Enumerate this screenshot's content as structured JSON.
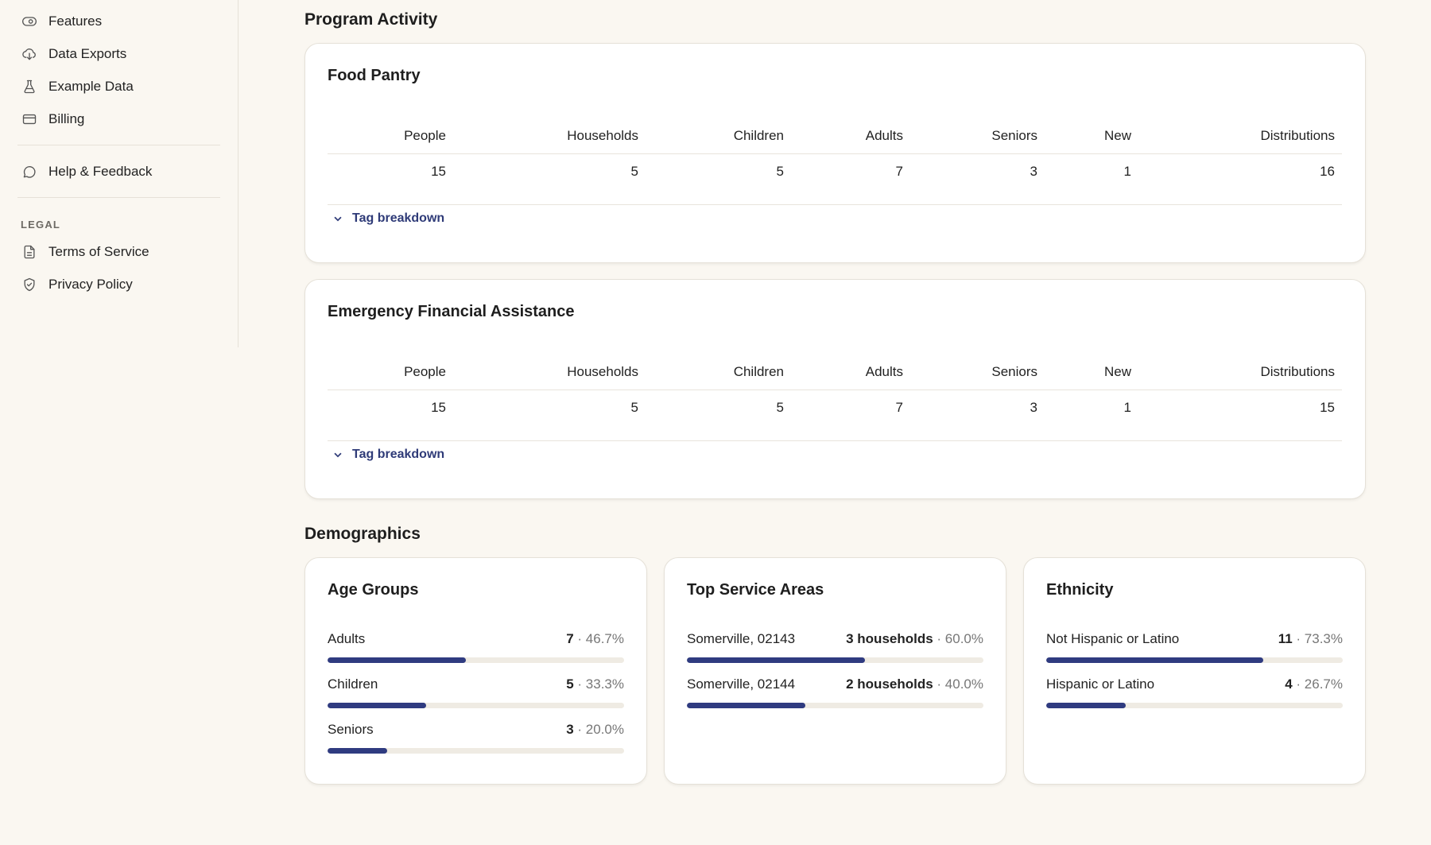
{
  "sidebar": {
    "items": [
      {
        "label": "Features",
        "icon": "eye-icon"
      },
      {
        "label": "Data Exports",
        "icon": "cloud-download-icon"
      },
      {
        "label": "Example Data",
        "icon": "flask-icon"
      },
      {
        "label": "Billing",
        "icon": "credit-card-icon"
      }
    ],
    "help": {
      "label": "Help & Feedback",
      "icon": "chat-bubble-icon"
    },
    "legal_label": "LEGAL",
    "legal_items": [
      {
        "label": "Terms of Service",
        "icon": "document-icon"
      },
      {
        "label": "Privacy Policy",
        "icon": "shield-check-icon"
      }
    ]
  },
  "program_activity": {
    "title": "Program Activity",
    "columns": [
      "People",
      "Households",
      "Children",
      "Adults",
      "Seniors",
      "New",
      "Distributions"
    ],
    "programs": [
      {
        "name": "Food Pantry",
        "values": [
          "15",
          "5",
          "5",
          "7",
          "3",
          "1",
          "16"
        ],
        "toggle": "Tag breakdown"
      },
      {
        "name": "Emergency Financial Assistance",
        "values": [
          "15",
          "5",
          "5",
          "7",
          "3",
          "1",
          "15"
        ],
        "toggle": "Tag breakdown"
      }
    ]
  },
  "demographics": {
    "title": "Demographics",
    "accent_color": "#2f3b80",
    "cards": [
      {
        "title": "Age Groups",
        "rows": [
          {
            "label": "Adults",
            "count": "7",
            "pct": "46.7%",
            "fraction": 0.467
          },
          {
            "label": "Children",
            "count": "5",
            "pct": "33.3%",
            "fraction": 0.333
          },
          {
            "label": "Seniors",
            "count": "3",
            "pct": "20.0%",
            "fraction": 0.2
          }
        ]
      },
      {
        "title": "Top Service Areas",
        "rows": [
          {
            "label": "Somerville, 02143",
            "count": "3 households",
            "pct": "60.0%",
            "fraction": 0.6
          },
          {
            "label": "Somerville, 02144",
            "count": "2 households",
            "pct": "40.0%",
            "fraction": 0.4
          }
        ]
      },
      {
        "title": "Ethnicity",
        "rows": [
          {
            "label": "Not Hispanic or Latino",
            "count": "11",
            "pct": "73.3%",
            "fraction": 0.733
          },
          {
            "label": "Hispanic or Latino",
            "count": "4",
            "pct": "26.7%",
            "fraction": 0.267
          }
        ]
      }
    ]
  }
}
